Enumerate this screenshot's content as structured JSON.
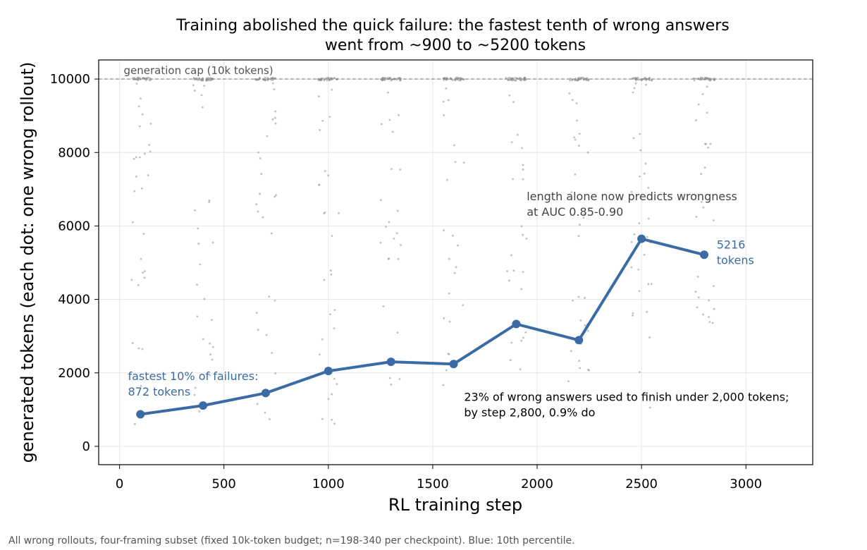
{
  "chart_data": {
    "type": "scatter",
    "title": "Training abolished the quick failure: the fastest tenth of wrong answers\nwent from ~900 to ~5200 tokens",
    "xlabel": "RL training step",
    "ylabel": "generated tokens (each dot: one wrong rollout)",
    "xlim": [
      -100,
      3320
    ],
    "ylim": [
      -500,
      10520
    ],
    "xticks": [
      0,
      500,
      1000,
      1500,
      2000,
      2500,
      3000
    ],
    "yticks": [
      0,
      2000,
      4000,
      6000,
      8000,
      10000
    ],
    "grid": true,
    "cap": {
      "value": 10000,
      "label": "generation cap (10k tokens)"
    },
    "checkpoints": [
      100,
      400,
      700,
      1000,
      1300,
      1600,
      1900,
      2200,
      2500,
      2800
    ],
    "percentile_series": {
      "name": "10th percentile",
      "color": "#3b6ba5",
      "x": [
        100,
        400,
        700,
        1000,
        1300,
        1600,
        1900,
        2200,
        2500,
        2800
      ],
      "y": [
        872,
        1110,
        1450,
        2050,
        2300,
        2240,
        3330,
        2890,
        5650,
        5216
      ]
    },
    "annotations": {
      "first_point": "fastest 10% of failures:\n872 tokens",
      "last_point": "5216\ntokens",
      "auc": "length alone now predicts wrongness\nat AUC 0.85-0.90",
      "under_2000": "23% of wrong answers used to finish under 2,000 tokens;\nby step 2,800, 0.9% do"
    },
    "footnote": "All wrong rollouts, four-framing subset (fixed 10k-token budget; n=198-340 per checkpoint). Blue: 10th percentile.",
    "colors": {
      "line": "#3b6ba5",
      "dots": "#8c8c8c",
      "cap": "#808080",
      "grid": "#e6e6e6"
    }
  }
}
